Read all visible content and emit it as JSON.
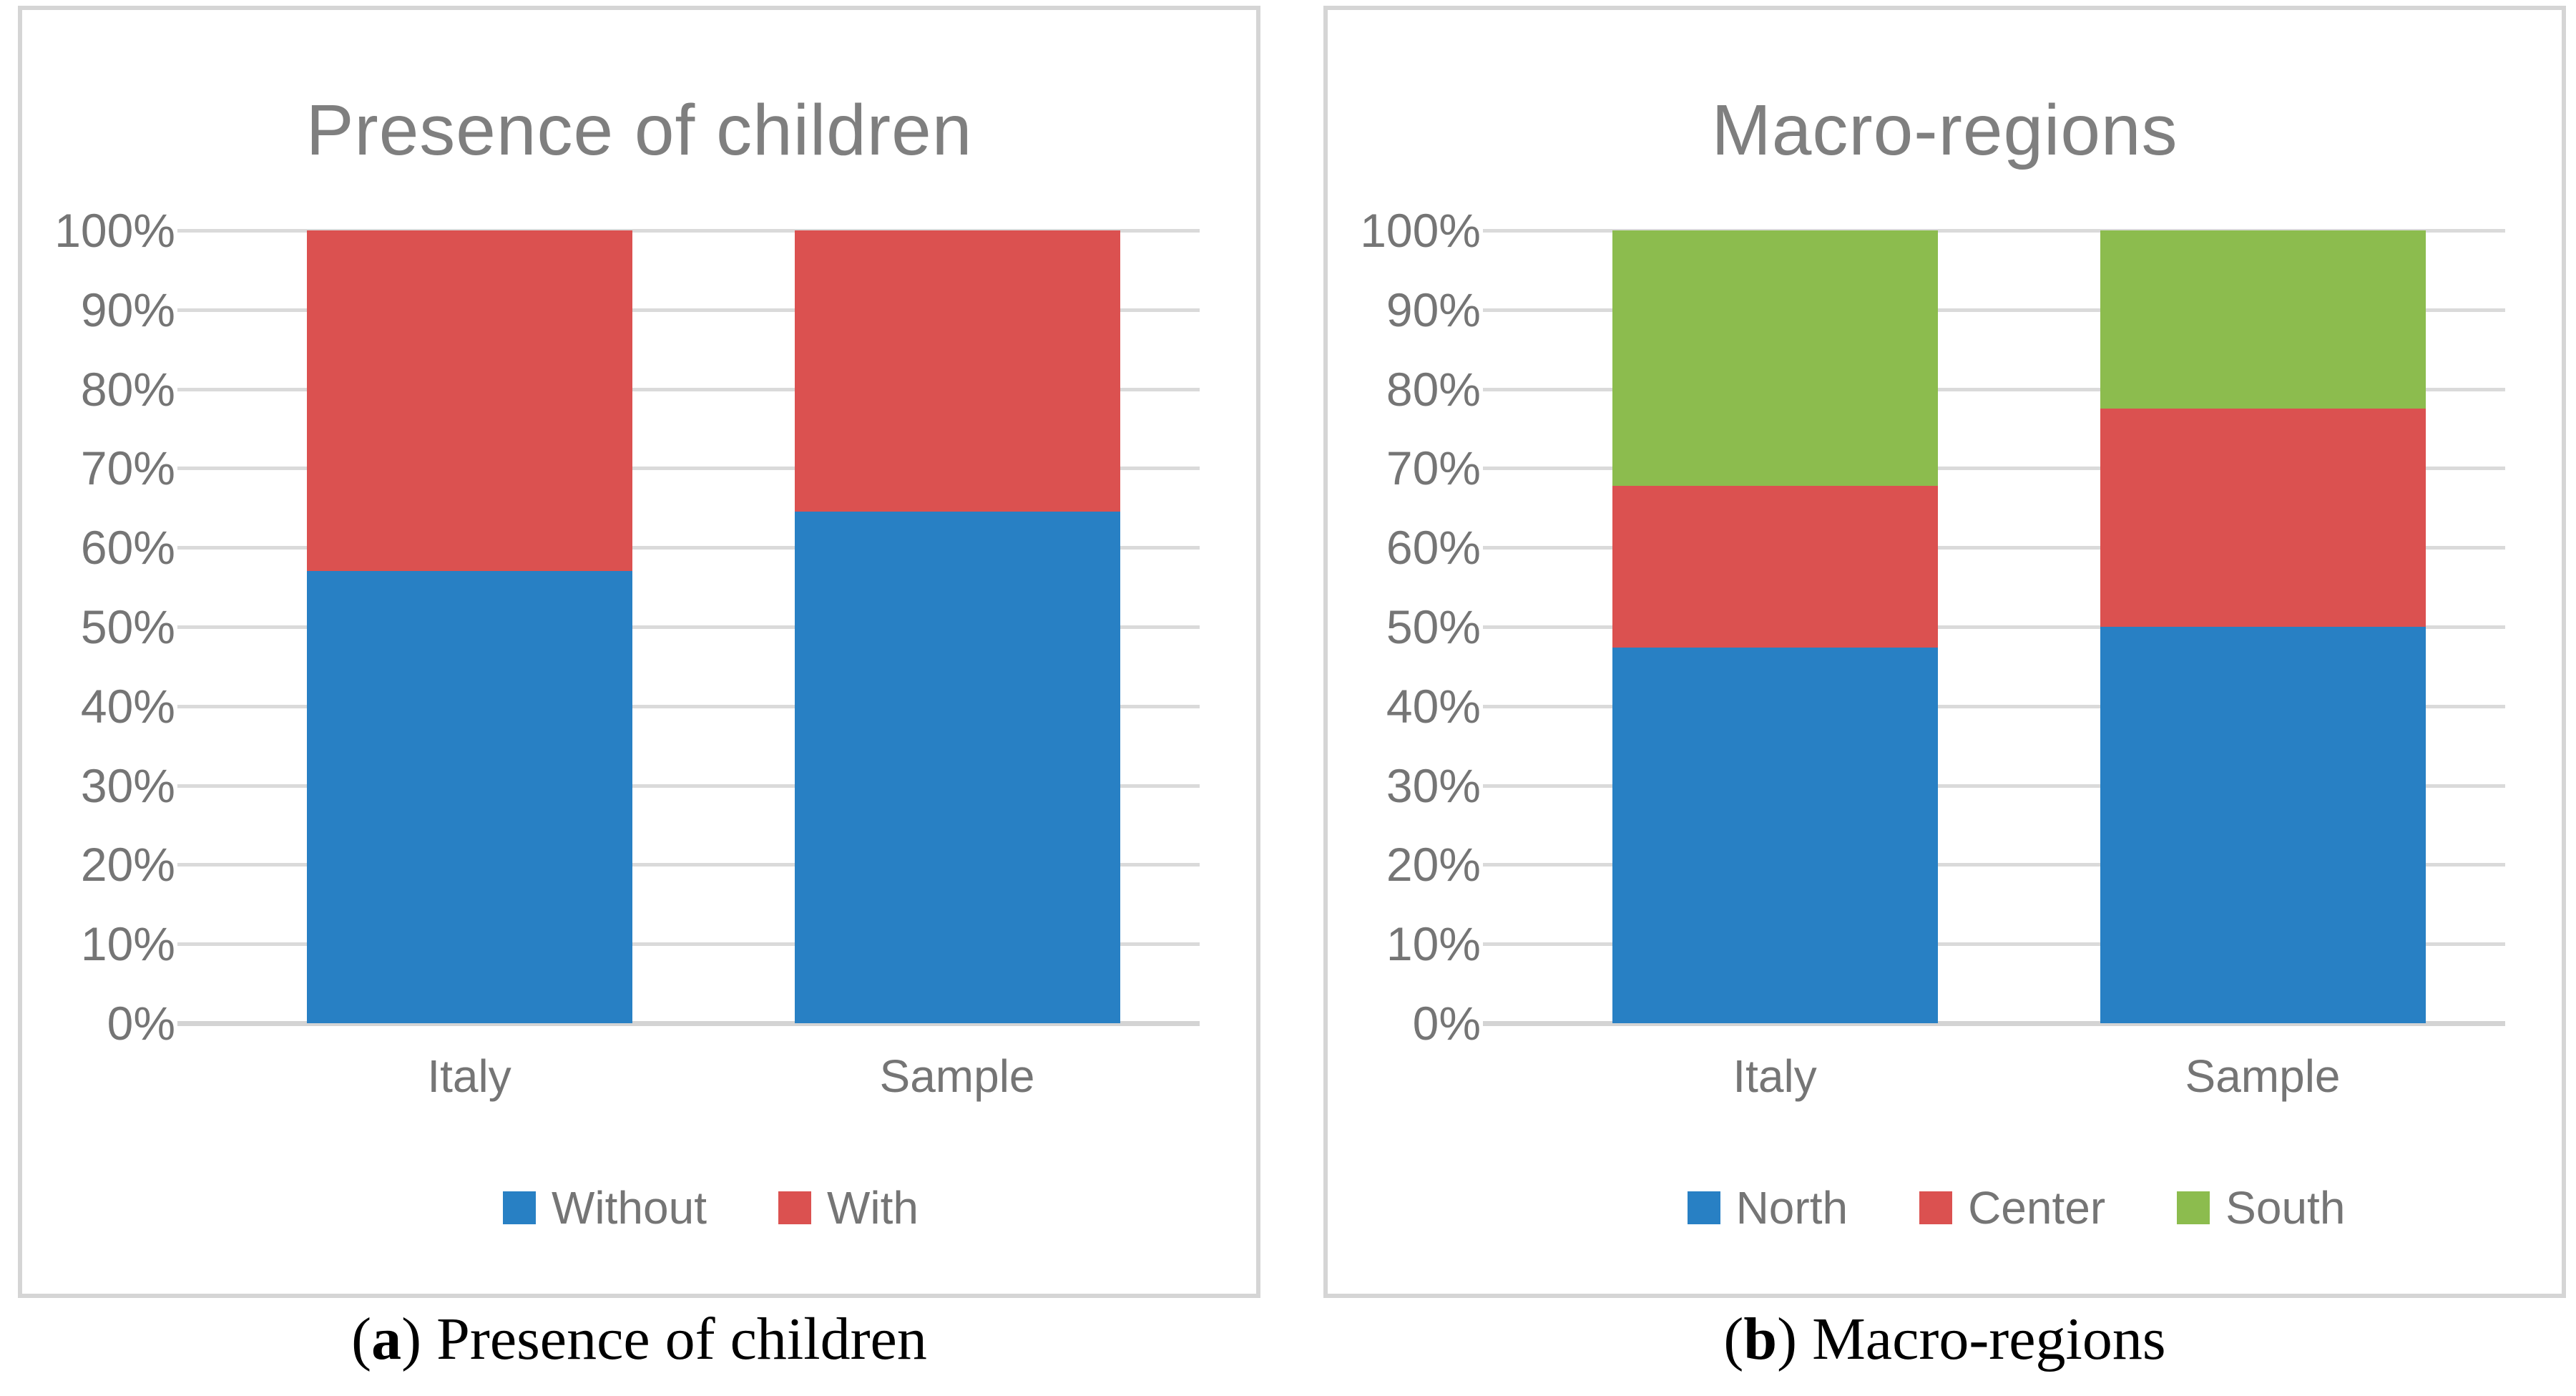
{
  "colors": {
    "grid": "#DADADA",
    "axis_line": "#D4D4D4",
    "panel_border": "#D5D5D5",
    "tick_text": "#757575",
    "title_text": "#7F7F7F",
    "caption_text": "#000000",
    "blue": "#2880C4",
    "red": "#DB5150",
    "green": "#8CBC4E"
  },
  "chart_data": [
    {
      "type": "bar",
      "stacked": true,
      "title": "Presence of children",
      "categories": [
        "Italy",
        "Sample"
      ],
      "series": [
        {
          "name": "Without",
          "color": "#2880C4",
          "values": [
            57.0,
            64.5
          ]
        },
        {
          "name": "With",
          "color": "#DB5150",
          "values": [
            43.0,
            35.5
          ]
        }
      ],
      "xlabel": "",
      "ylabel": "",
      "ylim": [
        0,
        100
      ],
      "y_ticks": [
        "0%",
        "10%",
        "20%",
        "30%",
        "40%",
        "50%",
        "60%",
        "70%",
        "80%",
        "90%",
        "100%"
      ],
      "grid": true,
      "legend_position": "bottom",
      "caption": {
        "open": "(",
        "letter": "a",
        "close": ") ",
        "text": "Presence of children"
      }
    },
    {
      "type": "bar",
      "stacked": true,
      "title": "Macro-regions",
      "categories": [
        "Italy",
        "Sample"
      ],
      "series": [
        {
          "name": "North",
          "color": "#2880C4",
          "values": [
            47.4,
            50.0
          ]
        },
        {
          "name": "Center",
          "color": "#DB5150",
          "values": [
            20.4,
            27.5
          ]
        },
        {
          "name": "South",
          "color": "#8CBC4E",
          "values": [
            32.2,
            22.5
          ]
        }
      ],
      "xlabel": "",
      "ylabel": "",
      "ylim": [
        0,
        100
      ],
      "y_ticks": [
        "0%",
        "10%",
        "20%",
        "30%",
        "40%",
        "50%",
        "60%",
        "70%",
        "80%",
        "90%",
        "100%"
      ],
      "grid": true,
      "legend_position": "bottom",
      "caption": {
        "open": "(",
        "letter": "b",
        "close": ") ",
        "text": "Macro-regions"
      }
    }
  ]
}
